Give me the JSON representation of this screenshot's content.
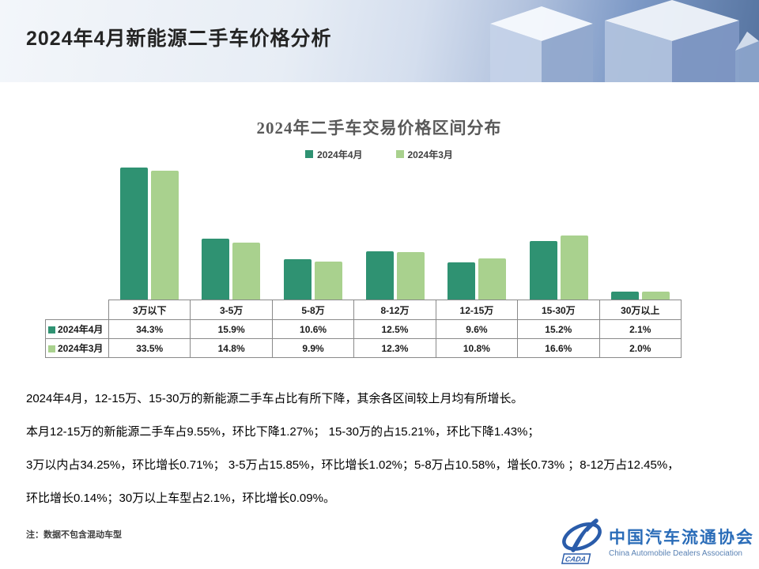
{
  "slide": {
    "title": "2024年4月新能源二手车价格分析"
  },
  "chart_data": {
    "type": "bar",
    "title": "2024年二手车交易价格区间分布",
    "categories": [
      "3万以下",
      "3-5万",
      "5-8万",
      "8-12万",
      "12-15万",
      "15-30万",
      "30万以上"
    ],
    "series": [
      {
        "name": "2024年4月",
        "color": "#2F9272",
        "values": [
          34.3,
          15.9,
          10.6,
          12.5,
          9.6,
          15.2,
          2.1
        ]
      },
      {
        "name": "2024年3月",
        "color": "#A9D18E",
        "values": [
          33.5,
          14.8,
          9.9,
          12.3,
          10.8,
          16.6,
          2.0
        ]
      }
    ],
    "value_suffix": "%",
    "ylim": [
      0,
      35
    ],
    "grid": false,
    "legend_position": "top",
    "data_table": true
  },
  "body": {
    "lines": [
      "2024年4月，12-15万、15-30万的新能源二手车占比有所下降，其余各区间较上月均有所增长。",
      "本月12-15万的新能源二手车占9.55%，环比下降1.27%；  15-30万的占15.21%，环比下降1.43%；",
      "3万以内占34.25%，环比增长0.71%；  3-5万占15.85%，环比增长1.02%；5-8万占10.58%，增长0.73% ；8-12万占12.45%，",
      "环比增长0.14%；30万以上车型占2.1%，环比增长0.09%。"
    ]
  },
  "footnote": "注：数据不包含混动车型",
  "logo": {
    "mark": "CADA",
    "name_cn": "中国汽车流通协会",
    "name_en": "China Automobile Dealers Association",
    "color": "#2a5caa"
  }
}
